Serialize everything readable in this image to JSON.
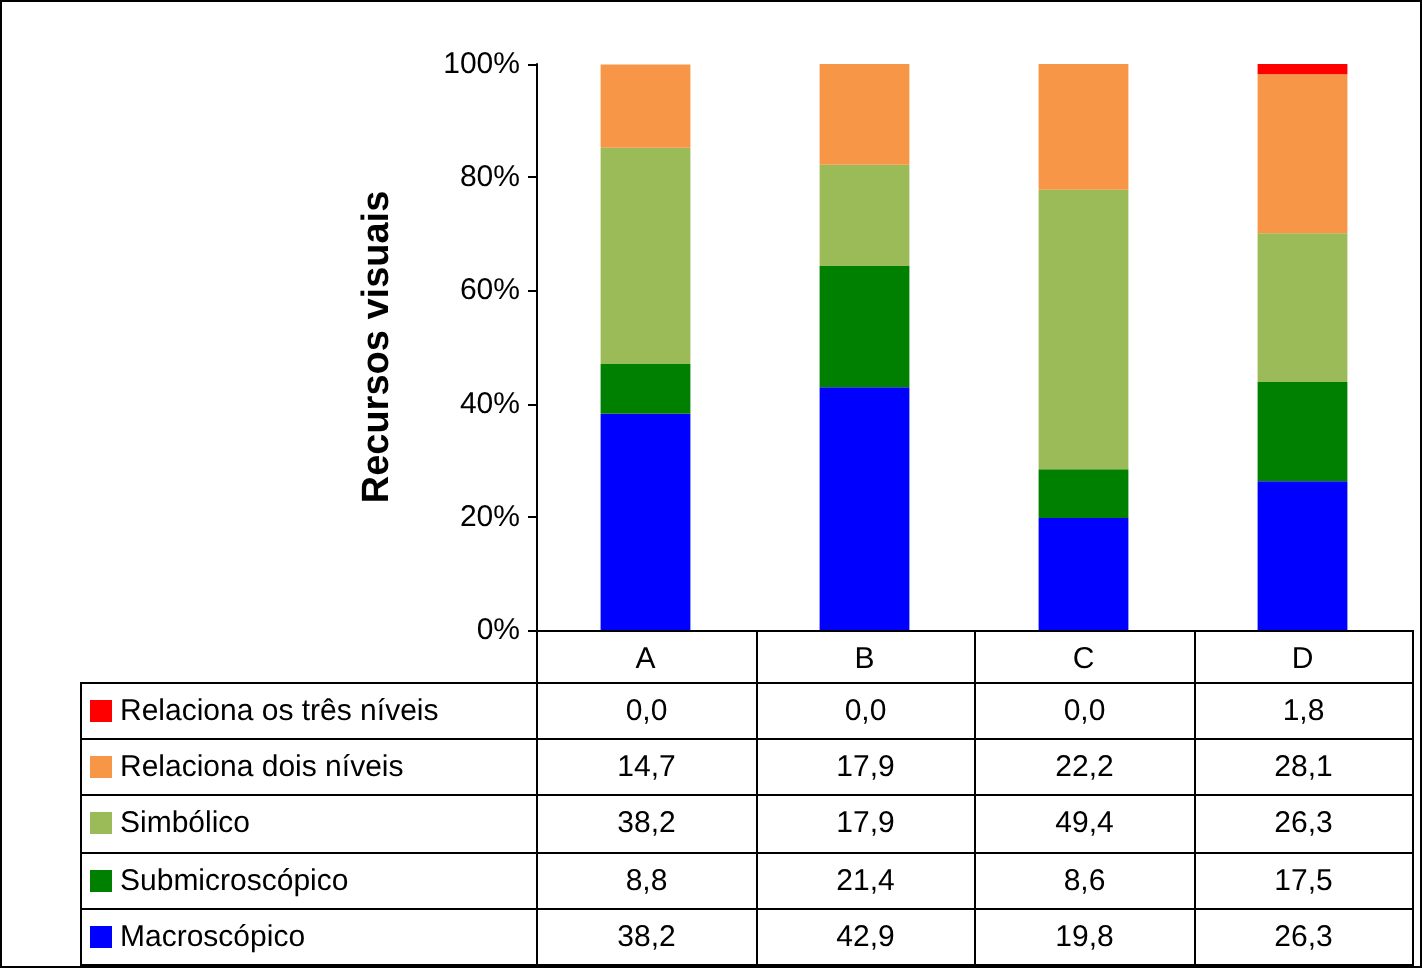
{
  "chart_data": {
    "type": "bar",
    "stacked": true,
    "ylabel": "Recursos visuais",
    "categories": [
      "A",
      "B",
      "C",
      "D"
    ],
    "ylim": [
      0,
      100
    ],
    "yticks": [
      {
        "value": 0,
        "label": "0%"
      },
      {
        "value": 20,
        "label": "20%"
      },
      {
        "value": 40,
        "label": "40%"
      },
      {
        "value": 60,
        "label": "60%"
      },
      {
        "value": 80,
        "label": "80%"
      },
      {
        "value": 100,
        "label": "100%"
      }
    ],
    "grid": false,
    "legend": "bottom",
    "series": [
      {
        "name": "Macroscópico",
        "color": "#0000ff",
        "values": [
          38.2,
          42.9,
          19.8,
          26.3
        ],
        "value_labels": [
          "38,2",
          "42,9",
          "19,8",
          "26,3"
        ]
      },
      {
        "name": "Submicroscópico",
        "color": "#008000",
        "values": [
          8.8,
          21.4,
          8.6,
          17.5
        ],
        "value_labels": [
          "8,8",
          "21,4",
          "8,6",
          "17,5"
        ]
      },
      {
        "name": "Simbólico",
        "color": "#9bbb59",
        "values": [
          38.2,
          17.9,
          49.4,
          26.3
        ],
        "value_labels": [
          "38,2",
          "17,9",
          "49,4",
          "26,3"
        ]
      },
      {
        "name": "Relaciona dois níveis",
        "color": "#f79646",
        "values": [
          14.7,
          17.9,
          22.2,
          28.1
        ],
        "value_labels": [
          "14,7",
          "17,9",
          "22,2",
          "28,1"
        ]
      },
      {
        "name": "Relaciona os três níveis",
        "color": "#ff0000",
        "values": [
          0.0,
          0.0,
          0.0,
          1.8
        ],
        "value_labels": [
          "0,0",
          "0,0",
          "0,0",
          "1,8"
        ]
      }
    ]
  }
}
